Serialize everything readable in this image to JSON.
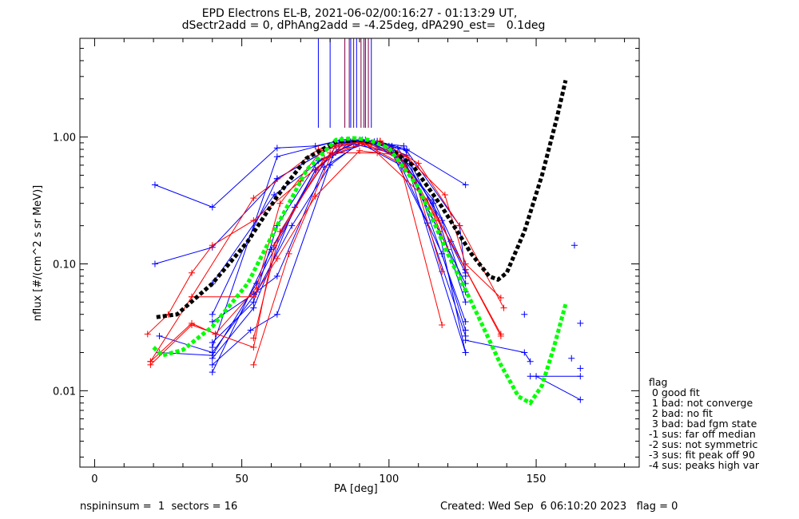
{
  "header": {
    "title_line1": "EPD Electrons EL-B, 2021-06-02/00:16:27 - 01:13:29 UT,",
    "title_line2": "dSectr2add = 0, dPhAng2add = -4.25deg, dPA290_est=   0.1deg"
  },
  "footer": {
    "left": "nspininsum =  1  sectors = 16",
    "right": "Created: Wed Sep  6 06:10:20 2023   flag = 0"
  },
  "legend": {
    "title": "flag",
    "items": [
      " 0 good fit",
      " 1 bad: not converge",
      " 2 bad: no fit",
      " 3 bad: bad fgm state",
      "-1 sus: far off median",
      "-2 sus: not symmetric",
      "-3 sus: fit peak off 90",
      "-4 sus: peaks high var"
    ]
  },
  "colors": {
    "blue": "#0000ff",
    "red": "#ff0000",
    "black": "#000000",
    "green": "#00ff00",
    "maroon": "#800040"
  },
  "chart_data": {
    "type": "line",
    "xlabel": "PA [deg]",
    "ylabel": "nflux [#/(cm^2 s sr MeV)]",
    "xlim": [
      -5,
      185
    ],
    "ylim": [
      0.0025,
      6
    ],
    "yscale": "log",
    "xticks": [
      0,
      50,
      100,
      150
    ],
    "xtick_labels": [
      "0",
      "50",
      "100",
      "150"
    ],
    "yticks": [
      0.01,
      0.1,
      1.0
    ],
    "ytick_labels": [
      "0.01",
      "0.10",
      "1.00"
    ],
    "grid": false,
    "series": [
      {
        "color": "blue",
        "x": [
          20.5,
          40,
          62,
          75,
          84,
          96,
          106,
          126
        ],
        "y": [
          0.42,
          0.28,
          0.82,
          0.85,
          0.95,
          0.93,
          0.8,
          0.42
        ]
      },
      {
        "color": "blue",
        "x": [
          20.5,
          40,
          62,
          83,
          95,
          106,
          124,
          126
        ],
        "y": [
          0.1,
          0.135,
          0.47,
          0.9,
          0.92,
          0.78,
          0.2,
          0.08
        ]
      },
      {
        "color": "blue",
        "x": [
          22,
          40,
          55,
          67,
          80,
          90,
          104,
          118,
          126
        ],
        "y": [
          0.027,
          0.02,
          0.06,
          0.2,
          0.6,
          0.9,
          0.6,
          0.12,
          0.03
        ]
      },
      {
        "color": "blue",
        "x": [
          40,
          54,
          62,
          76,
          88,
          101,
          113,
          126
        ],
        "y": [
          0.024,
          0.05,
          0.2,
          0.65,
          0.88,
          0.75,
          0.21,
          0.027
        ]
      },
      {
        "color": "blue",
        "x": [
          40,
          62,
          84,
          94,
          104,
          117,
          126
        ],
        "y": [
          0.04,
          0.47,
          0.92,
          0.9,
          0.7,
          0.18,
          0.02
        ]
      },
      {
        "color": "blue",
        "x": [
          40,
          60,
          75,
          87,
          96,
          106,
          126
        ],
        "y": [
          0.014,
          0.13,
          0.55,
          0.92,
          0.88,
          0.72,
          0.085
        ]
      },
      {
        "color": "blue",
        "x": [
          40,
          54,
          68,
          82,
          91,
          101,
          115,
          126
        ],
        "y": [
          0.018,
          0.045,
          0.28,
          0.85,
          0.95,
          0.85,
          0.3,
          0.05
        ]
      },
      {
        "color": "blue",
        "x": [
          40,
          54,
          62,
          78,
          92,
          105,
          126
        ],
        "y": [
          0.035,
          0.058,
          0.08,
          0.58,
          0.95,
          0.65,
          0.07
        ]
      },
      {
        "color": "blue",
        "x": [
          40,
          53,
          62,
          81,
          93,
          106,
          126
        ],
        "y": [
          0.016,
          0.03,
          0.04,
          0.72,
          0.9,
          0.62,
          0.02
        ]
      },
      {
        "color": "blue",
        "x": [
          40,
          61,
          78,
          90,
          103,
          118,
          126
        ],
        "y": [
          0.07,
          0.35,
          0.68,
          0.95,
          0.82,
          0.22,
          0.06
        ]
      },
      {
        "color": "blue",
        "x": [
          22,
          40,
          55,
          75,
          86,
          100,
          115,
          126
        ],
        "y": [
          0.02,
          0.019,
          0.07,
          0.55,
          0.95,
          0.85,
          0.32,
          0.09
        ]
      },
      {
        "color": "blue",
        "x": [
          40,
          62,
          84,
          96,
          105,
          126
        ],
        "y": [
          0.022,
          0.7,
          0.95,
          0.9,
          0.85,
          0.035
        ]
      },
      {
        "color": "blue",
        "x": [
          126,
          146,
          148
        ],
        "y": [
          0.025,
          0.02,
          0.017
        ]
      },
      {
        "color": "blue",
        "x": [
          148,
          165
        ],
        "y": [
          0.013,
          0.013
        ]
      },
      {
        "color": "blue",
        "x": [
          150,
          165
        ],
        "y": [
          0.013,
          0.0085
        ]
      },
      {
        "color": "red",
        "x": [
          18,
          25,
          33,
          40,
          54,
          70,
          83,
          93,
          106,
          119,
          126,
          138
        ],
        "y": [
          0.028,
          0.04,
          0.085,
          0.14,
          0.22,
          0.45,
          0.8,
          0.88,
          0.7,
          0.35,
          0.1,
          0.054
        ]
      },
      {
        "color": "red",
        "x": [
          19,
          33,
          54,
          76,
          88,
          97,
          110,
          124,
          139
        ],
        "y": [
          0.017,
          0.055,
          0.33,
          0.8,
          0.9,
          0.93,
          0.62,
          0.2,
          0.045
        ]
      },
      {
        "color": "red",
        "x": [
          19,
          33,
          54,
          61,
          78,
          91,
          105,
          121,
          138
        ],
        "y": [
          0.016,
          0.033,
          0.022,
          0.14,
          0.68,
          0.9,
          0.6,
          0.15,
          0.027
        ]
      },
      {
        "color": "red",
        "x": [
          19,
          33,
          41,
          55,
          63,
          77,
          90,
          104,
          117,
          138
        ],
        "y": [
          0.017,
          0.034,
          0.028,
          0.065,
          0.3,
          0.78,
          0.91,
          0.69,
          0.22,
          0.028
        ]
      },
      {
        "color": "red",
        "x": [
          33,
          54,
          62,
          75,
          90,
          103,
          118
        ],
        "y": [
          0.055,
          0.055,
          0.11,
          0.34,
          0.78,
          0.72,
          0.033
        ]
      },
      {
        "color": "red",
        "x": [
          54,
          66,
          82,
          97,
          109,
          118
        ],
        "y": [
          0.016,
          0.12,
          0.88,
          0.92,
          0.45,
          0.087
        ]
      },
      {
        "color": "red",
        "x": [
          54,
          63,
          80,
          96,
          113,
          120
        ],
        "y": [
          0.026,
          0.18,
          0.75,
          0.75,
          0.32,
          0.13
        ]
      },
      {
        "color": "black",
        "dashed": true,
        "x": [
          21,
          28,
          40,
          52,
          62,
          72,
          82,
          90,
          98,
          108,
          118,
          128,
          134,
          137,
          140,
          146,
          152,
          157,
          160
        ],
        "y": [
          0.038,
          0.04,
          0.07,
          0.15,
          0.34,
          0.68,
          0.92,
          0.95,
          0.88,
          0.6,
          0.28,
          0.12,
          0.08,
          0.075,
          0.085,
          0.18,
          0.5,
          1.4,
          2.8
        ]
      },
      {
        "color": "green",
        "dashed": true,
        "x": [
          20,
          23,
          30,
          40,
          52,
          62,
          72,
          82,
          88,
          93,
          100,
          110,
          120,
          130,
          138,
          144,
          148,
          152,
          156,
          160
        ],
        "y": [
          0.022,
          0.019,
          0.021,
          0.032,
          0.07,
          0.2,
          0.55,
          0.95,
          0.98,
          0.95,
          0.82,
          0.4,
          0.12,
          0.04,
          0.016,
          0.009,
          0.008,
          0.011,
          0.022,
          0.048
        ]
      }
    ],
    "scatter": [
      {
        "color": "blue",
        "x": [
          146,
          162,
          165,
          165,
          163
        ],
        "y": [
          0.04,
          0.018,
          0.015,
          0.034,
          0.14
        ]
      },
      {
        "color": "red",
        "x": [
          97
        ],
        "y": [
          0.93
        ]
      }
    ],
    "vertical_lines": [
      {
        "color": "blue",
        "x": [
          76,
          80,
          87,
          89,
          92,
          94
        ]
      },
      {
        "color": "maroon",
        "x": [
          85,
          86.5,
          88,
          90.5,
          91.5,
          93
        ]
      }
    ]
  }
}
